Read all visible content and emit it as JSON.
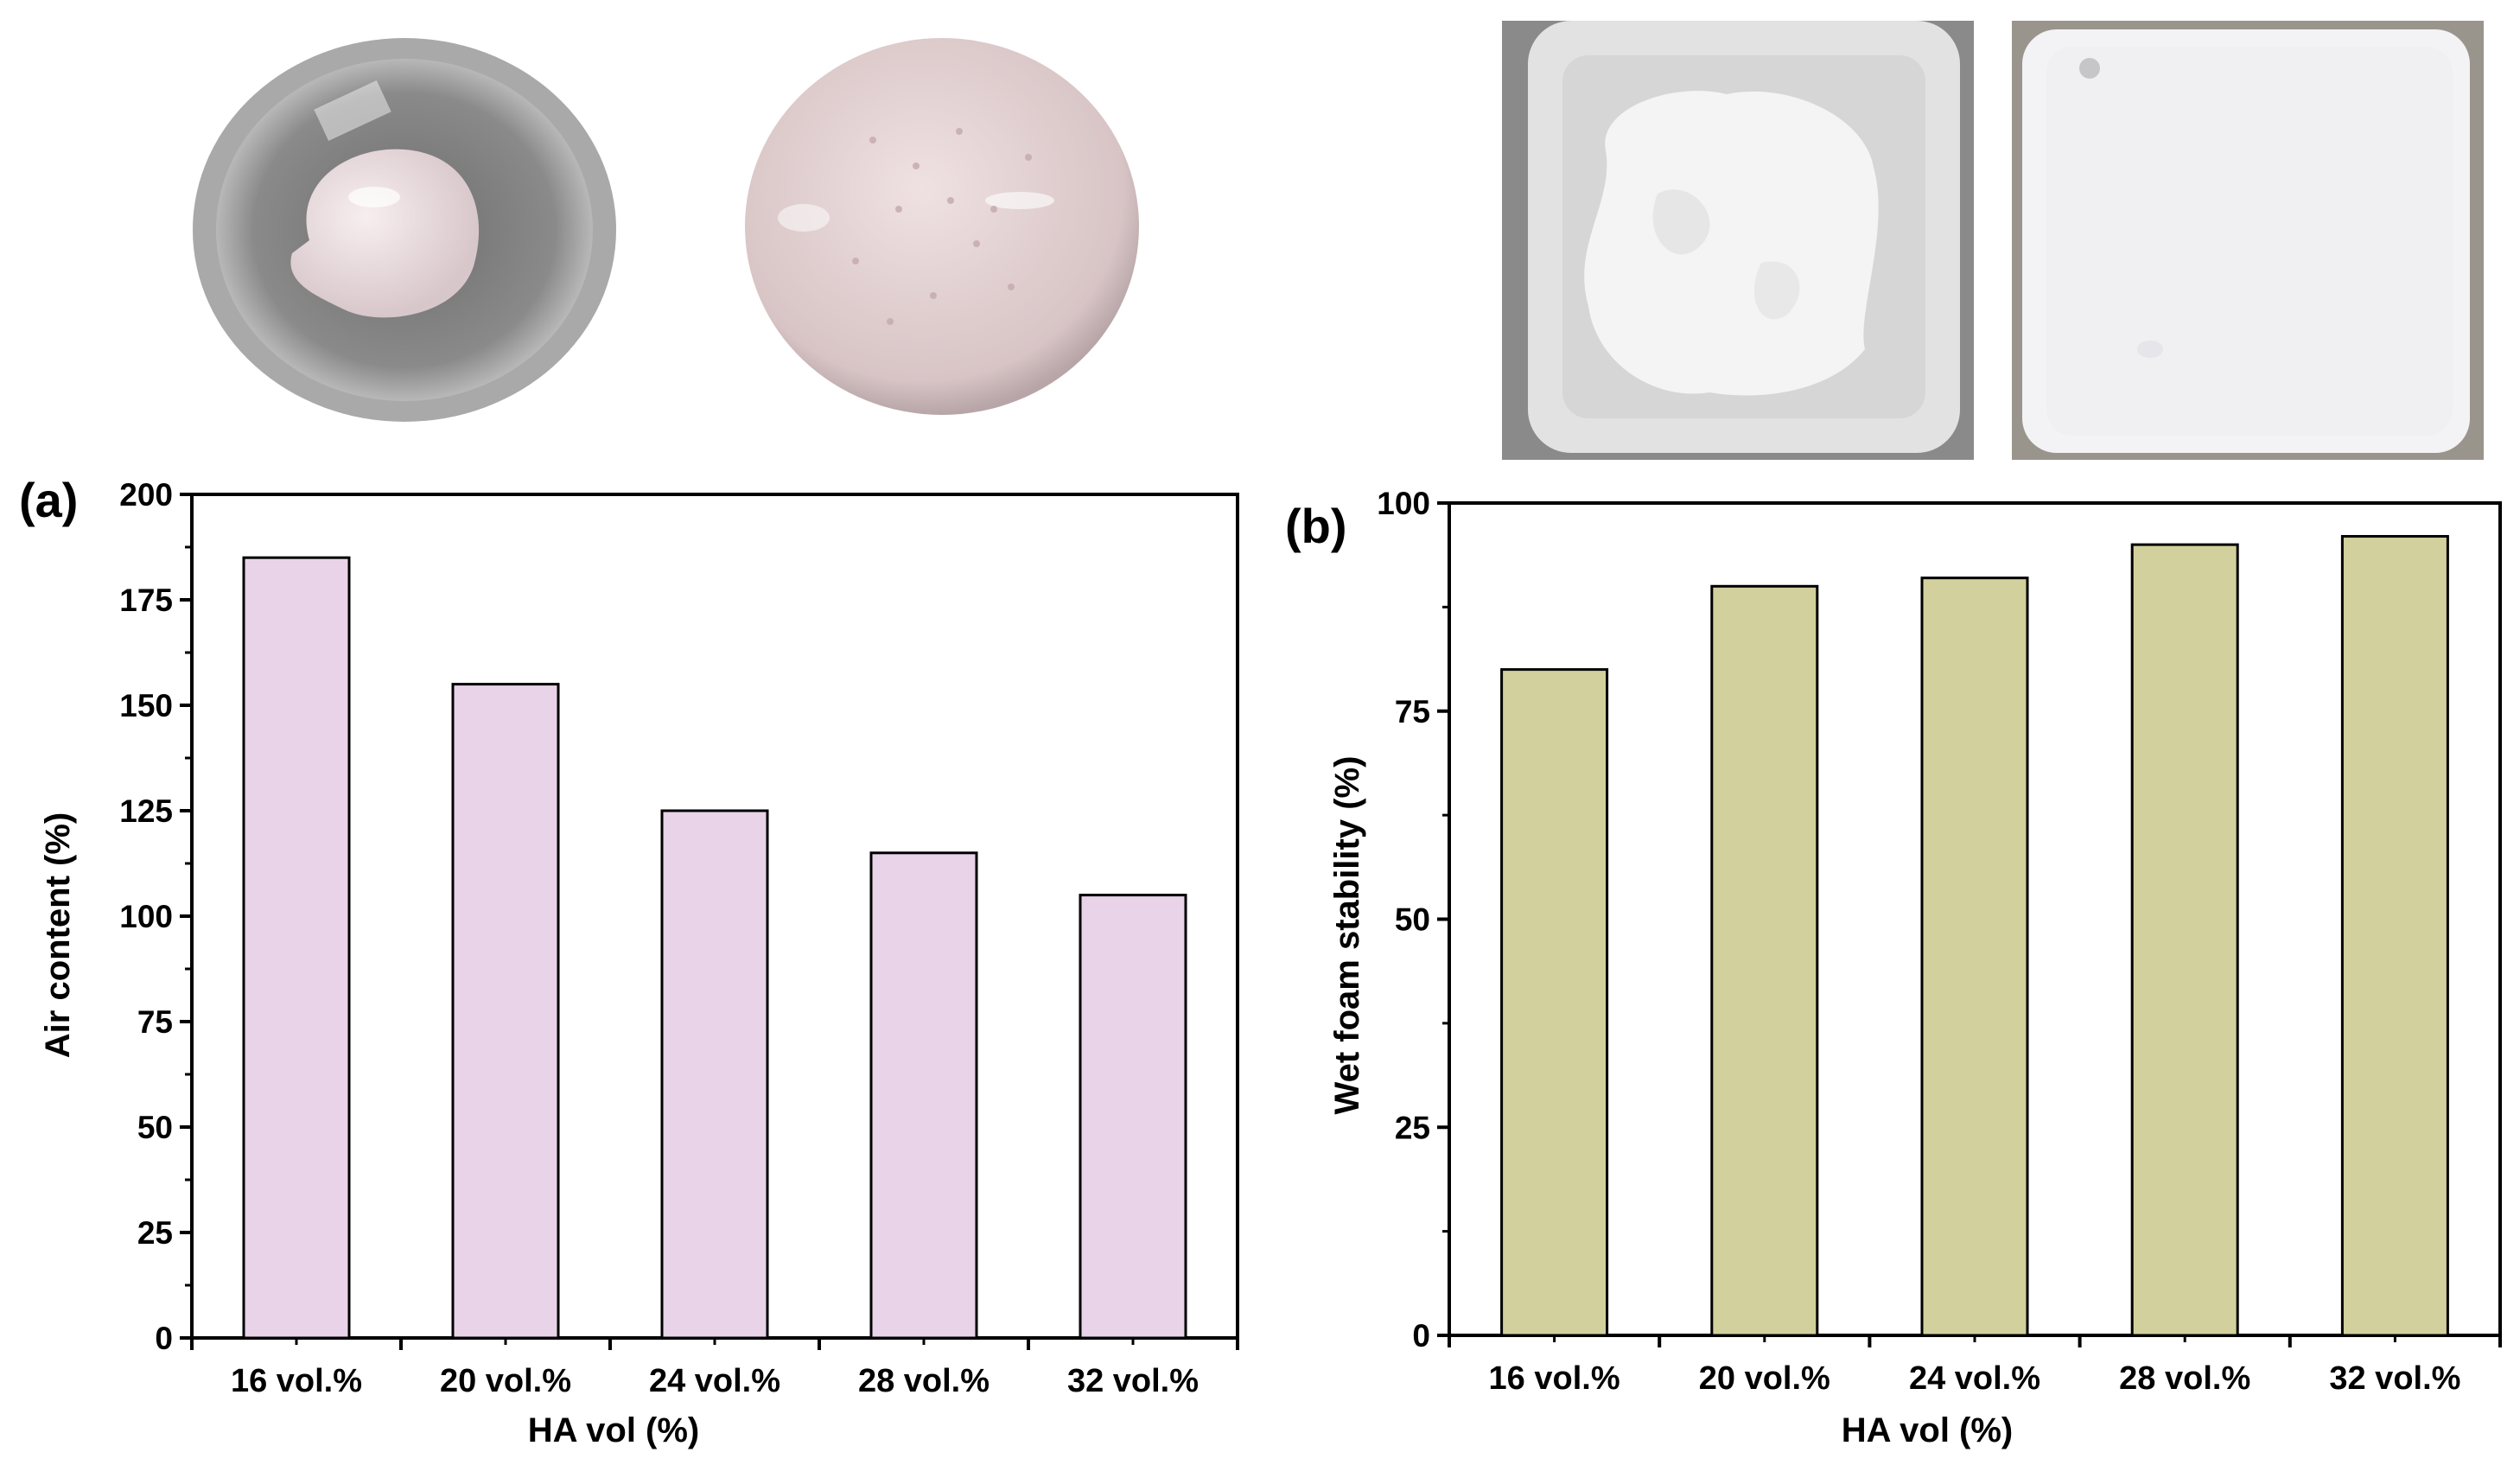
{
  "chart_data": [
    {
      "panel_label": "(a)",
      "type": "bar",
      "categories": [
        "16 vol.%",
        "20 vol.%",
        "24 vol.%",
        "28 vol.%",
        "32 vol.%"
      ],
      "values": [
        185,
        155,
        125,
        115,
        105
      ],
      "xlabel": "HA vol (%)",
      "ylabel": "Air content (%)",
      "ylim": [
        0,
        200
      ],
      "yticks": [
        "0",
        "25",
        "50",
        "75",
        "100",
        "125",
        "150",
        "175",
        "200"
      ],
      "bar_color": "#e8d3e8",
      "grid": false
    },
    {
      "panel_label": "(b)",
      "type": "bar",
      "categories": [
        "16 vol.%",
        "20 vol.%",
        "24 vol.%",
        "28 vol.%",
        "32 vol.%"
      ],
      "values": [
        80,
        90,
        91,
        95,
        96
      ],
      "xlabel": "HA vol (%)",
      "ylabel": "Wet foam stability (%)",
      "ylim": [
        0,
        100
      ],
      "yticks": [
        "0",
        "25",
        "50",
        "75",
        "100"
      ],
      "bar_color": "#d2d09c",
      "grid": false
    }
  ]
}
